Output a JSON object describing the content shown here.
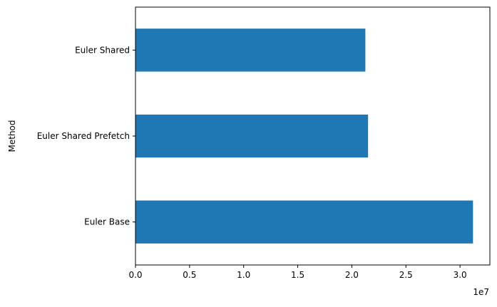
{
  "chart_data": {
    "type": "bar",
    "orientation": "horizontal",
    "title": "",
    "xlabel": "",
    "ylabel": "Method",
    "x_offset_label": "1e7",
    "x_scale": 10000000,
    "categories": [
      "Euler Base",
      "Euler Shared Prefetch",
      "Euler Shared"
    ],
    "values": [
      31200000,
      21500000,
      21250000
    ],
    "xlim": [
      0,
      32760000
    ],
    "xticks": [
      0,
      5000000,
      10000000,
      15000000,
      20000000,
      25000000,
      30000000
    ],
    "xtick_labels": [
      "0.0",
      "0.5",
      "1.0",
      "1.5",
      "2.0",
      "2.5",
      "3.0"
    ],
    "bar_color": "#1f77b4",
    "grid": false,
    "legend": "none"
  }
}
